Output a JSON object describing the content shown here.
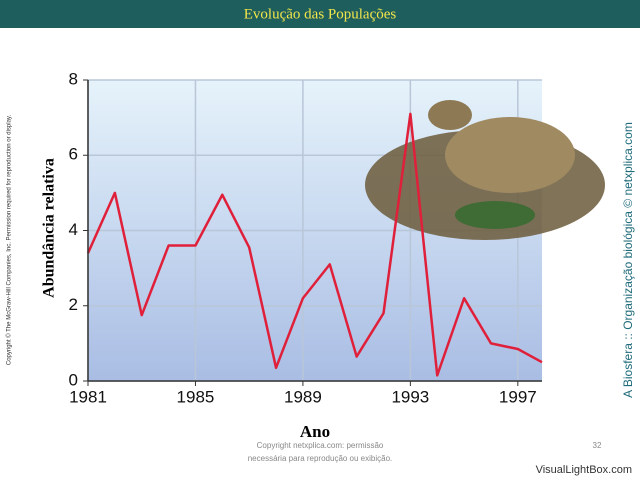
{
  "header": {
    "title": "Evolução das Populações"
  },
  "side_left": "Copyright © The McGraw-Hill Companies, Inc. Permission required for reproduction or display.",
  "side_right": "A Biosfera :: Organização biológica © netxplica.com",
  "footer": {
    "copyright_lines": [
      "Copyright netxplica.com: permissão",
      "necessária para reprodução ou exibição."
    ],
    "page": "32",
    "watermark": "VisualLightBox.com"
  },
  "chart_data": {
    "type": "line",
    "x_label": "Ano",
    "y_label": "Abundância relativa",
    "x": [
      1981,
      1982,
      1983,
      1984,
      1985,
      1986,
      1987,
      1988,
      1989,
      1990,
      1991,
      1992,
      1993,
      1994,
      1995,
      1995.5,
      1996,
      1997,
      1997.9
    ],
    "values": [
      3.4,
      5.0,
      1.75,
      3.6,
      3.6,
      4.95,
      3.55,
      0.35,
      2.2,
      3.1,
      0.65,
      1.8,
      7.1,
      0.15,
      2.2,
      1.6,
      1.0,
      0.85,
      0.5
    ],
    "color": "#e0203a",
    "xlim": [
      1981,
      1997.9
    ],
    "xticks": [
      1981,
      1985,
      1989,
      1993,
      1997
    ],
    "ylim": [
      0,
      8
    ],
    "yticks": [
      0,
      2,
      4,
      6,
      8
    ],
    "grid": true
  }
}
